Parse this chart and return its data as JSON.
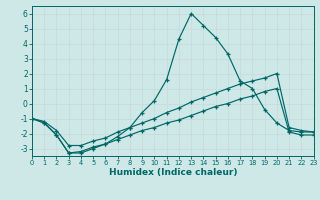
{
  "xlabel": "Humidex (Indice chaleur)",
  "background_color": "#cee8e8",
  "grid_color": "#c0d8d8",
  "line_color": "#006666",
  "xlim": [
    0,
    23
  ],
  "ylim": [
    -3.5,
    6.5
  ],
  "xticks": [
    0,
    1,
    2,
    3,
    4,
    5,
    6,
    7,
    8,
    9,
    10,
    11,
    12,
    13,
    14,
    15,
    16,
    17,
    18,
    19,
    20,
    21,
    22,
    23
  ],
  "yticks": [
    -3,
    -2,
    -1,
    0,
    1,
    2,
    3,
    4,
    5,
    6
  ],
  "line_peak_x": [
    0,
    1,
    2,
    3,
    4,
    5,
    6,
    7,
    8,
    9,
    10,
    11,
    12,
    13,
    14,
    15,
    16,
    17,
    18,
    19,
    20,
    21,
    22,
    23
  ],
  "line_peak_y": [
    -1.0,
    -1.3,
    -2.1,
    -3.3,
    -3.3,
    -3.0,
    -2.7,
    -2.2,
    -1.6,
    -0.6,
    0.2,
    1.6,
    4.3,
    6.0,
    5.2,
    4.4,
    3.3,
    1.5,
    1.0,
    -0.4,
    -1.3,
    -1.8,
    -1.9,
    -1.9
  ],
  "line_mid_x": [
    0,
    1,
    2,
    3,
    4,
    5,
    6,
    7,
    8,
    9,
    10,
    11,
    12,
    13,
    14,
    15,
    16,
    17,
    18,
    19,
    20,
    21,
    22,
    23
  ],
  "line_mid_y": [
    -1.0,
    -1.2,
    -1.8,
    -2.8,
    -2.8,
    -2.5,
    -2.3,
    -1.9,
    -1.6,
    -1.3,
    -1.0,
    -0.6,
    -0.3,
    0.1,
    0.4,
    0.7,
    1.0,
    1.3,
    1.5,
    1.7,
    2.0,
    -1.6,
    -1.8,
    -1.9
  ],
  "line_low_x": [
    0,
    1,
    2,
    3,
    4,
    5,
    6,
    7,
    8,
    9,
    10,
    11,
    12,
    13,
    14,
    15,
    16,
    17,
    18,
    19,
    20,
    21,
    22,
    23
  ],
  "line_low_y": [
    -1.0,
    -1.3,
    -2.1,
    -3.3,
    -3.2,
    -2.9,
    -2.7,
    -2.4,
    -2.1,
    -1.8,
    -1.6,
    -1.3,
    -1.1,
    -0.8,
    -0.5,
    -0.2,
    0.0,
    0.3,
    0.5,
    0.8,
    1.0,
    -1.9,
    -2.1,
    -2.1
  ]
}
